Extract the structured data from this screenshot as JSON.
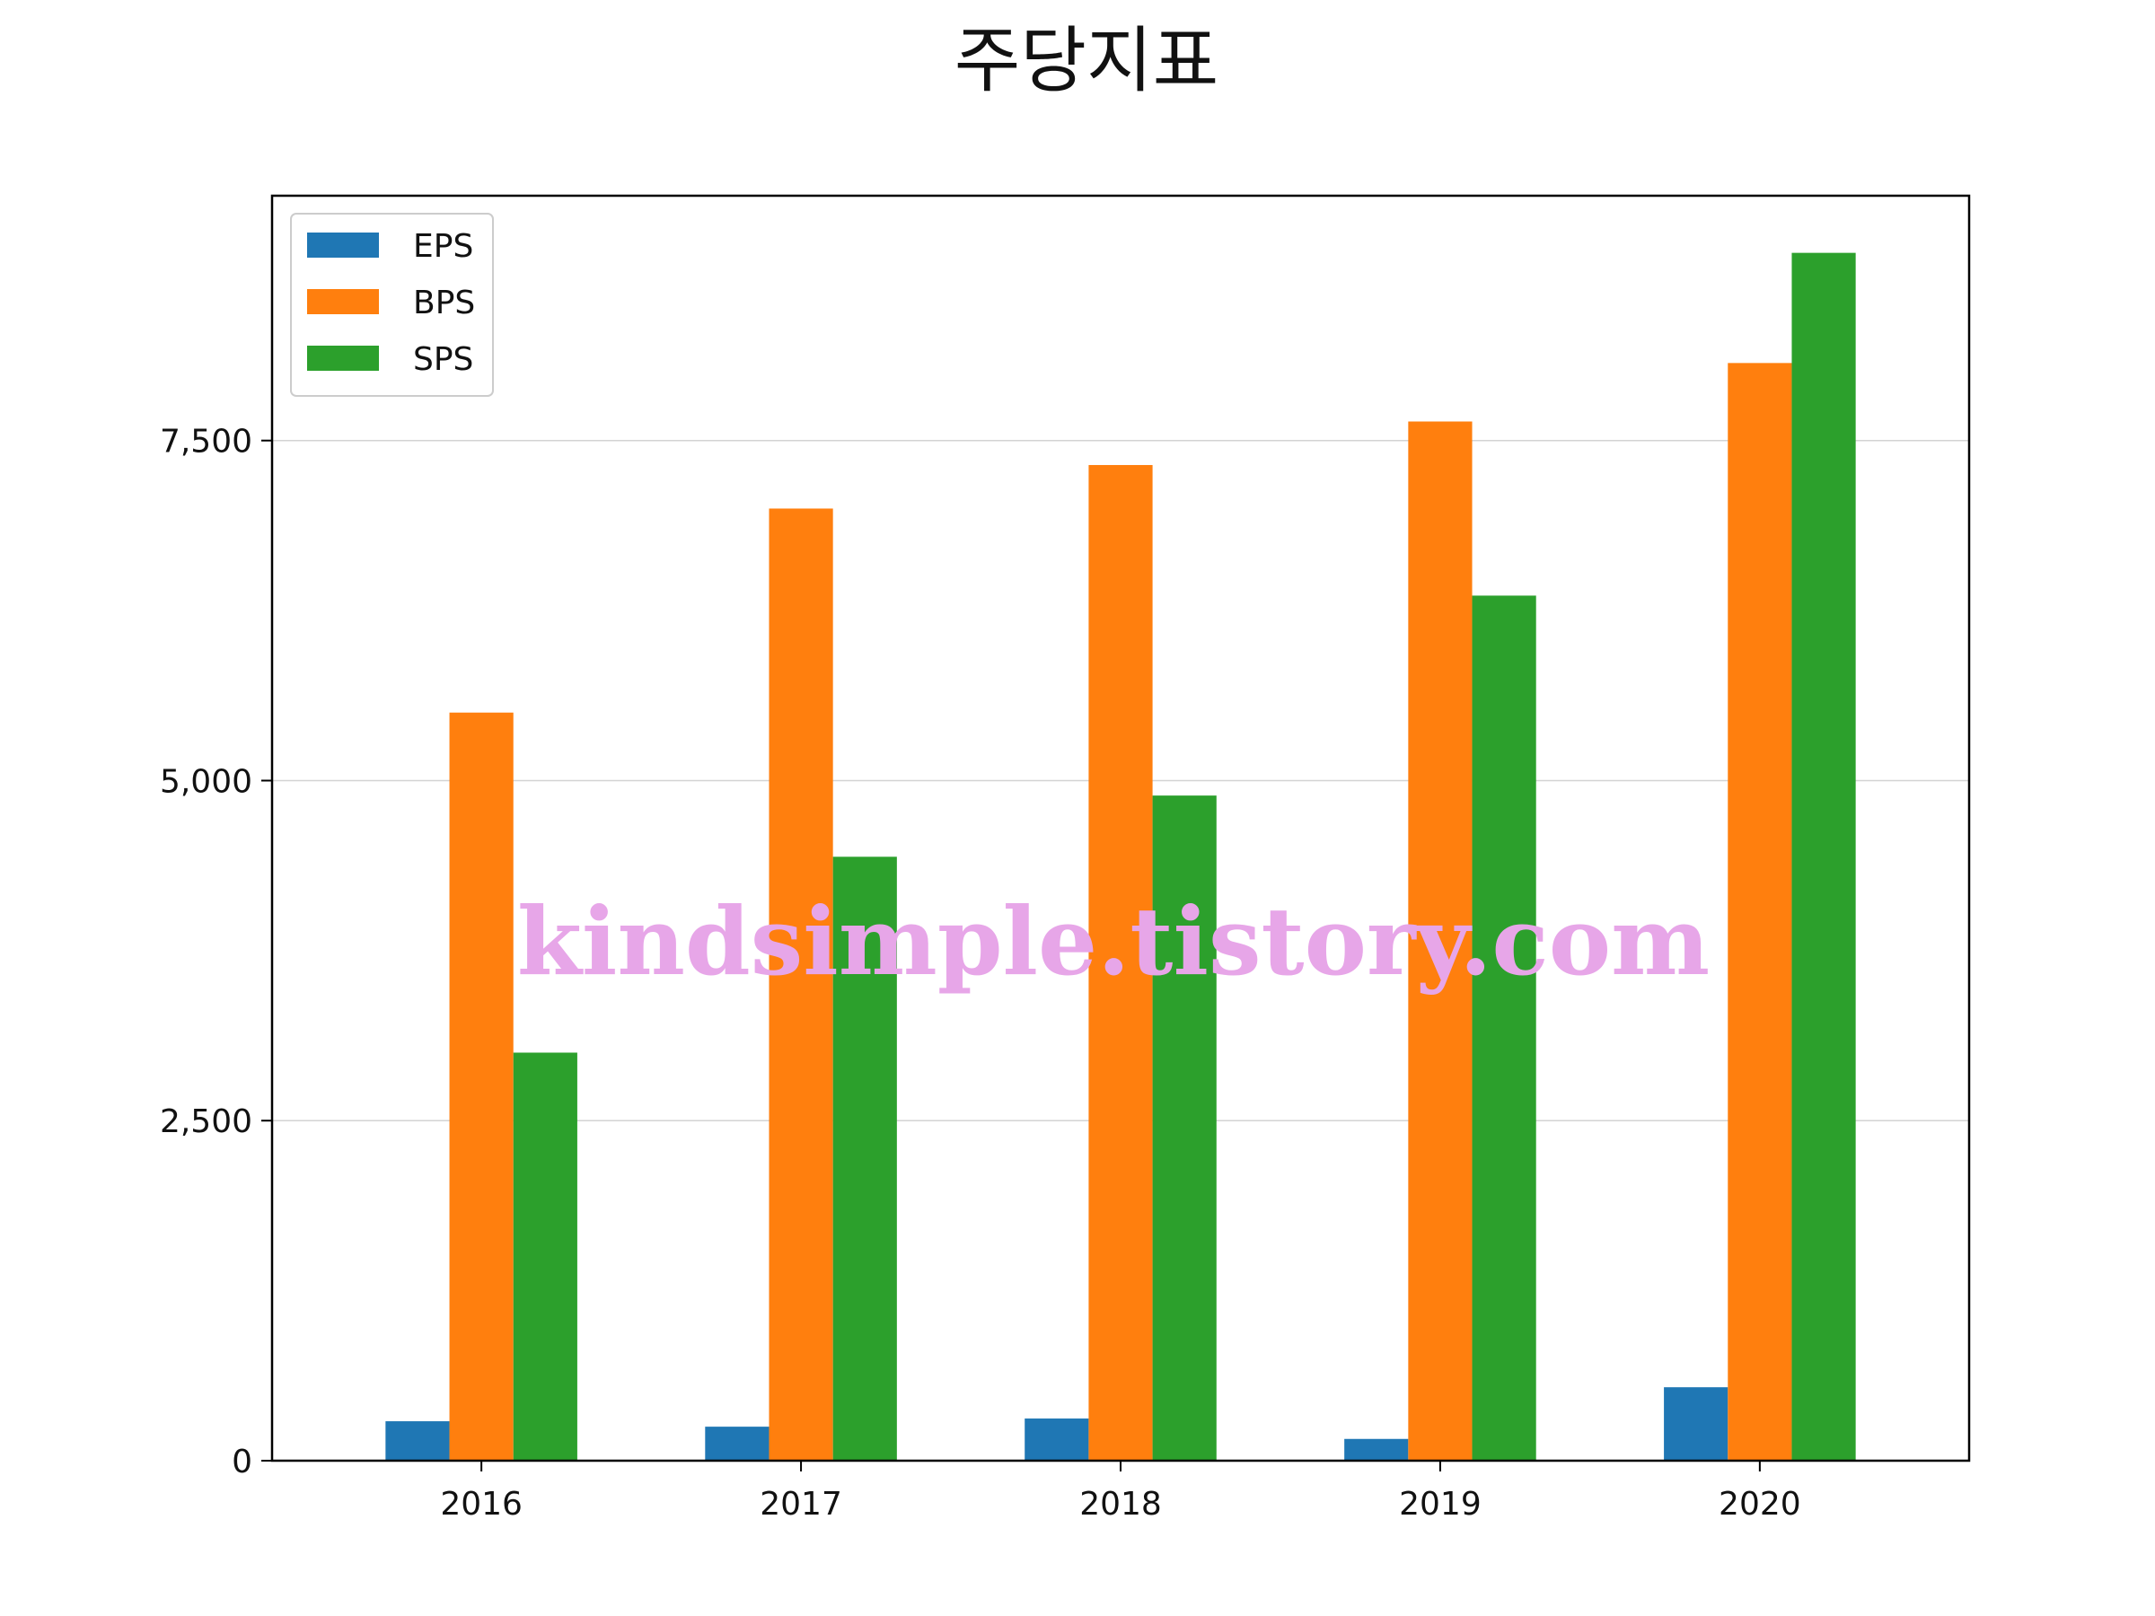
{
  "chart_data": {
    "type": "bar",
    "title": "주당지표",
    "xlabel": "",
    "ylabel": "",
    "categories": [
      "2016",
      "2017",
      "2018",
      "2019",
      "2020"
    ],
    "series": [
      {
        "name": "EPS",
        "color": "#1f77b4",
        "values": [
          290,
          250,
          310,
          160,
          540
        ]
      },
      {
        "name": "BPS",
        "color": "#ff7f0e",
        "values": [
          5500,
          7000,
          7320,
          7640,
          8070
        ]
      },
      {
        "name": "SPS",
        "color": "#2ca02c",
        "values": [
          3000,
          4440,
          4890,
          6360,
          8880
        ]
      }
    ],
    "ylim": [
      0,
      9300
    ],
    "yticks": [
      0,
      2500,
      5000,
      7500
    ],
    "ytick_labels": [
      "0",
      "2,500",
      "5,000",
      "7,500"
    ],
    "grid": "horizontal",
    "legend": "top-left",
    "watermark": "kindsimple.tistory.com"
  }
}
